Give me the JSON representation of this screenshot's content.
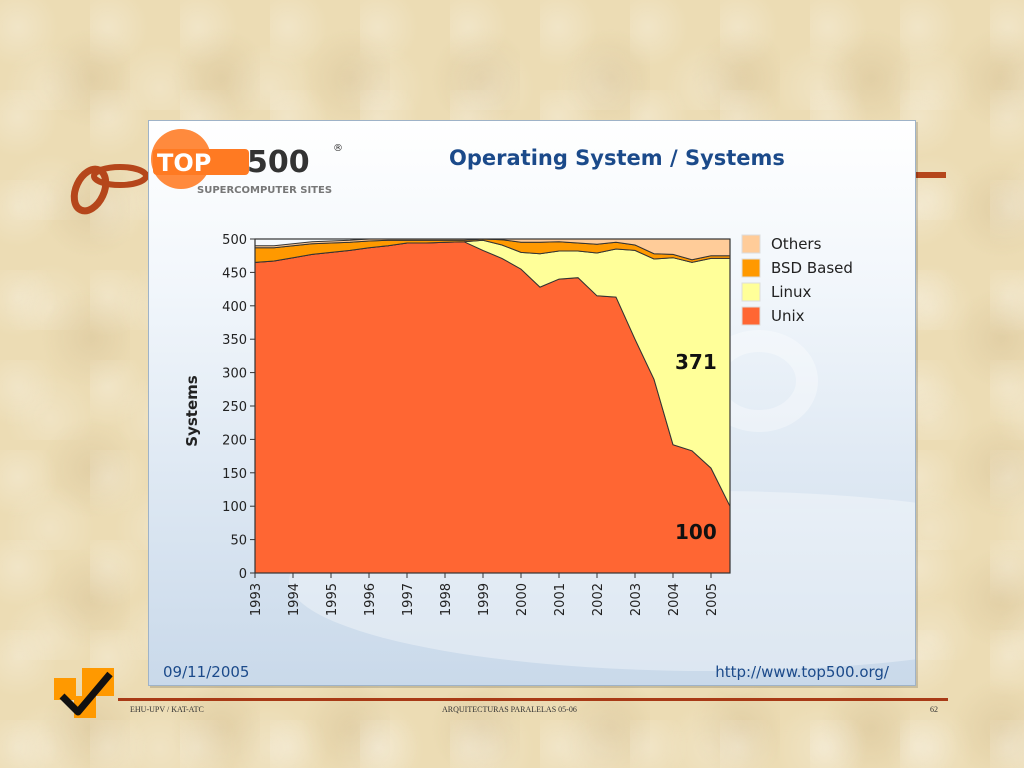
{
  "logo": {
    "top_text": "TOP",
    "num_text": "500",
    "reg": "®",
    "subtitle": "SUPERCOMPUTER SITES"
  },
  "chart_data": {
    "type": "area",
    "stacked": true,
    "title": "Operating System / Systems",
    "ylabel": "Systems",
    "xlabel": "",
    "ylim": [
      0,
      500
    ],
    "yticks": [
      0,
      50,
      100,
      150,
      200,
      250,
      300,
      350,
      400,
      450,
      500
    ],
    "year_labels": [
      "1993",
      "1994",
      "1995",
      "1996",
      "1997",
      "1998",
      "1999",
      "2000",
      "2001",
      "2002",
      "2003",
      "2004",
      "2005"
    ],
    "x": [
      1993.0,
      1993.5,
      1994.0,
      1994.5,
      1995.0,
      1995.5,
      1996.0,
      1996.5,
      1997.0,
      1997.5,
      1998.0,
      1998.5,
      1999.0,
      1999.5,
      2000.0,
      2000.5,
      2001.0,
      2001.5,
      2002.0,
      2002.5,
      2003.0,
      2003.5,
      2004.0,
      2004.5,
      2005.0,
      2005.5
    ],
    "series": [
      {
        "name": "Unix",
        "color": "#ff6633",
        "values": [
          465,
          467,
          472,
          477,
          480,
          483,
          487,
          490,
          494,
          494,
          495,
          496,
          483,
          471,
          455,
          428,
          440,
          442,
          415,
          413,
          350,
          290,
          192,
          183,
          157,
          100
        ]
      },
      {
        "name": "Linux",
        "color": "#ffff99",
        "values": [
          0,
          0,
          0,
          0,
          0,
          0,
          0,
          0,
          0,
          0,
          0,
          0,
          15,
          20,
          25,
          50,
          42,
          40,
          64,
          72,
          133,
          180,
          280,
          282,
          314,
          371
        ]
      },
      {
        "name": "BSD Based",
        "color": "#ff9900",
        "values": [
          22,
          20,
          18,
          16,
          14,
          12,
          10,
          8,
          4,
          4,
          3,
          2,
          2,
          8,
          15,
          17,
          14,
          12,
          13,
          10,
          8,
          8,
          5,
          4,
          4,
          4
        ]
      },
      {
        "name": "Others",
        "color": "#ffcc99",
        "values": [
          3,
          3,
          3,
          3,
          3,
          3,
          3,
          2,
          2,
          2,
          2,
          2,
          0,
          1,
          5,
          5,
          4,
          6,
          8,
          5,
          9,
          22,
          23,
          31,
          25,
          25
        ]
      }
    ],
    "annotations": [
      {
        "text": "371"
      },
      {
        "text": "100"
      }
    ]
  },
  "footer": {
    "date": "09/11/2005",
    "url": "http://www.top500.org/",
    "left": "EHU-UPV / KAT-ATC",
    "center": "ARQUITECTURAS  PARALELAS  05-06",
    "page": "62"
  }
}
